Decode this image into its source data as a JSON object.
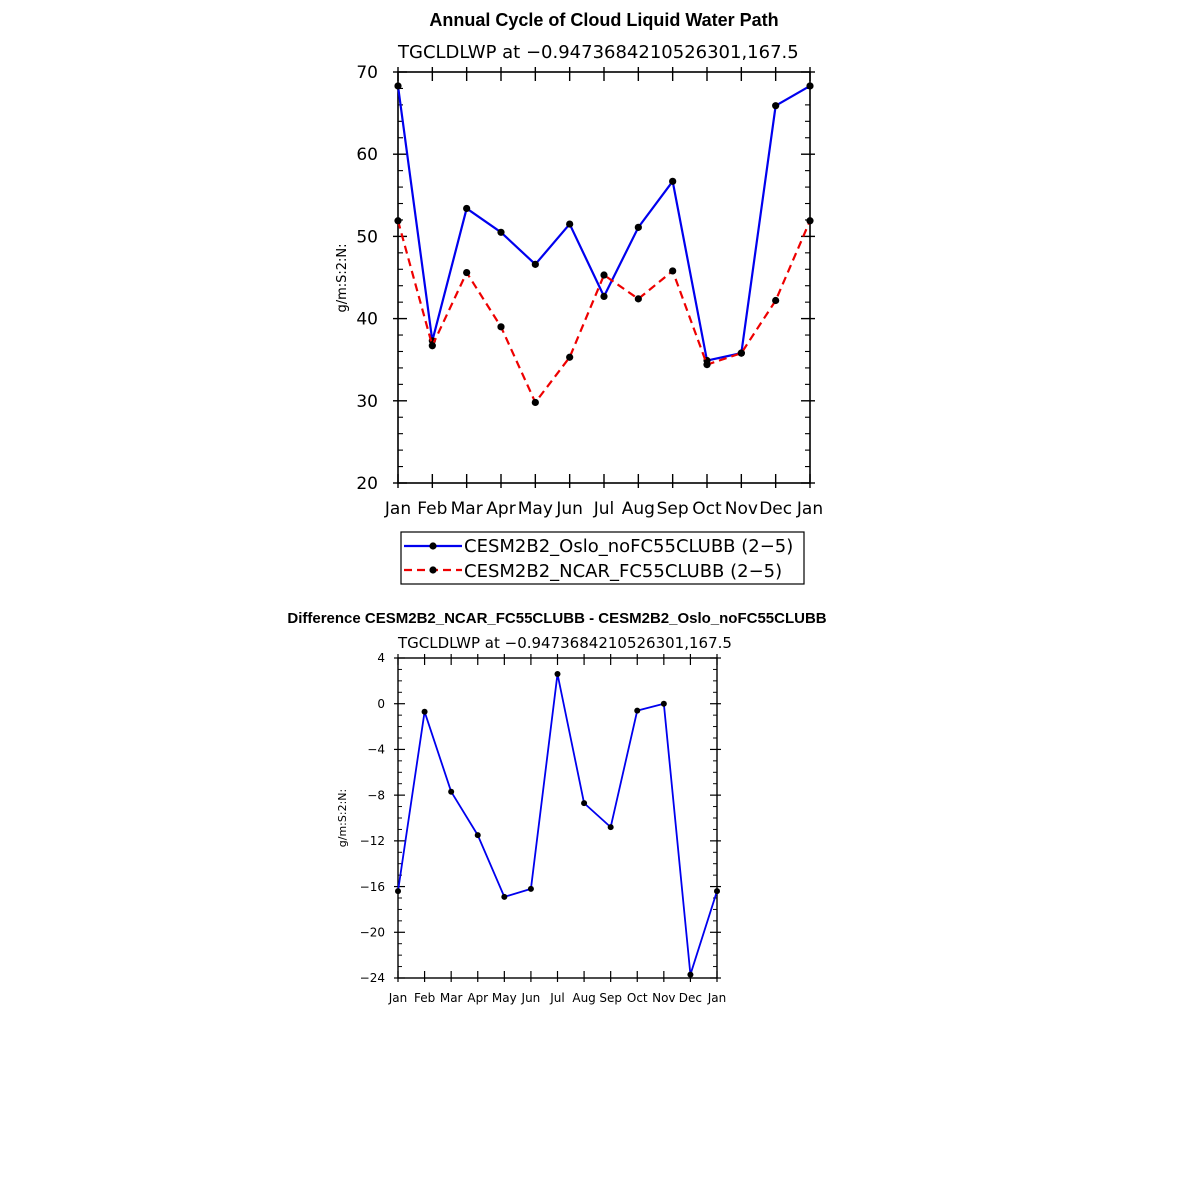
{
  "chart_data": [
    {
      "type": "line",
      "title": "Annual Cycle of Cloud Liquid Water Path",
      "subtitle": "TGCLDLWP  at  −0.9473684210526301,167.5",
      "ylabel": "g/m:S:2:N:",
      "xlabel": "",
      "categories": [
        "Jan",
        "Feb",
        "Mar",
        "Apr",
        "May",
        "Jun",
        "Jul",
        "Aug",
        "Sep",
        "Oct",
        "Nov",
        "Dec",
        "Jan"
      ],
      "ylim": [
        20,
        70
      ],
      "yticks": [
        20,
        30,
        40,
        50,
        60,
        70
      ],
      "ytick_labels": [
        "20",
        "30",
        "40",
        "50",
        "60",
        "70"
      ],
      "legend_position": "below",
      "series": [
        {
          "name": "CESM2B2_Oslo_noFC55CLUBB (2−5)",
          "color": "#0000ee",
          "dash": "solid",
          "values": [
            68.3,
            37.3,
            53.4,
            50.5,
            46.6,
            51.5,
            42.7,
            51.1,
            56.7,
            34.9,
            35.8,
            65.9,
            68.3
          ]
        },
        {
          "name": "CESM2B2_NCAR_FC55CLUBB (2−5)",
          "color": "#ee0000",
          "dash": "dashed",
          "values": [
            51.9,
            36.7,
            45.6,
            39.0,
            29.8,
            35.3,
            45.3,
            42.4,
            45.8,
            34.4,
            35.8,
            42.2,
            51.9
          ]
        }
      ]
    },
    {
      "type": "line",
      "title": "Difference CESM2B2_NCAR_FC55CLUBB - CESM2B2_Oslo_noFC55CLUBB",
      "subtitle": "TGCLDLWP  at  −0.9473684210526301,167.5",
      "ylabel": "g/m:S:2:N:",
      "xlabel": "",
      "categories": [
        "Jan",
        "Feb",
        "Mar",
        "Apr",
        "May",
        "Jun",
        "Jul",
        "Aug",
        "Sep",
        "Oct",
        "Nov",
        "Dec",
        "Jan"
      ],
      "ylim": [
        -24,
        4
      ],
      "yticks": [
        -24,
        -20,
        -16,
        -12,
        -8,
        -4,
        0,
        4
      ],
      "ytick_labels": [
        "−24",
        "−20",
        "−16",
        "−12",
        "−8",
        "−4",
        "0",
        "4"
      ],
      "series": [
        {
          "name": "",
          "color": "#0000ee",
          "dash": "solid",
          "values": [
            -16.4,
            -0.7,
            -7.7,
            -11.5,
            -16.9,
            -16.2,
            2.6,
            -8.7,
            -10.8,
            -0.6,
            0.0,
            -23.7,
            -16.4
          ]
        }
      ]
    }
  ]
}
